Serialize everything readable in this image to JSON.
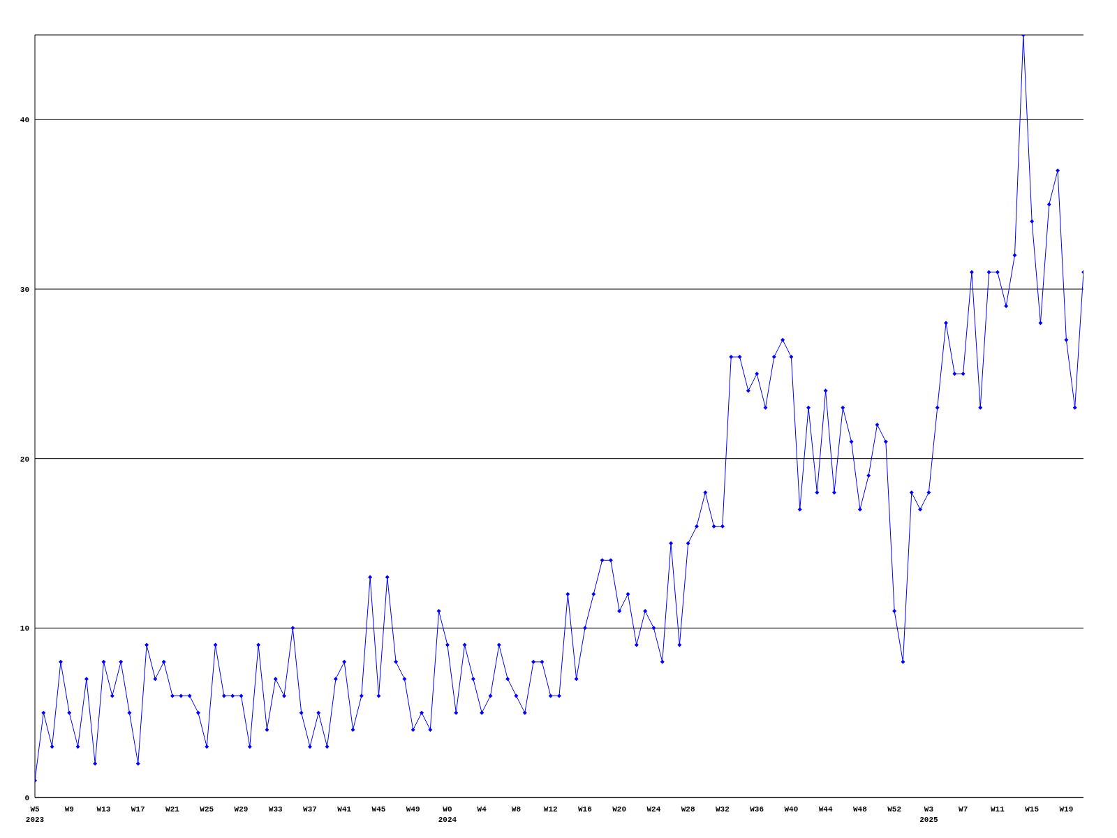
{
  "chart_data": {
    "type": "line",
    "categories": [
      "W5\n2023",
      null,
      null,
      null,
      "W9",
      null,
      null,
      null,
      "W13",
      null,
      null,
      null,
      "W17",
      null,
      null,
      null,
      "W21",
      null,
      null,
      null,
      "W25",
      null,
      null,
      null,
      "W29",
      null,
      null,
      null,
      "W33",
      null,
      null,
      null,
      "W37",
      null,
      null,
      null,
      "W41",
      null,
      null,
      null,
      "W45",
      null,
      null,
      null,
      "W49",
      null,
      null,
      null,
      "W0\n2024",
      null,
      null,
      null,
      "W4",
      null,
      null,
      null,
      "W8",
      null,
      null,
      null,
      "W12",
      null,
      null,
      null,
      "W16",
      null,
      null,
      null,
      "W20",
      null,
      null,
      null,
      "W24",
      null,
      null,
      null,
      "W28",
      null,
      null,
      null,
      "W32",
      null,
      null,
      null,
      "W36",
      null,
      null,
      null,
      "W40",
      null,
      null,
      null,
      "W44",
      null,
      null,
      null,
      "W48",
      null,
      null,
      null,
      "W52",
      null,
      null,
      null,
      "W3\n2025",
      null,
      null,
      null,
      "W7",
      null,
      null,
      null,
      "W11",
      null,
      null,
      null,
      "W15",
      null,
      null,
      null,
      "W19",
      null,
      null
    ],
    "series": [
      {
        "color": "#0000ff",
        "values": [
          1,
          5,
          3,
          8,
          5,
          3,
          7,
          2,
          8,
          6,
          8,
          5,
          2,
          9,
          7,
          8,
          6,
          6,
          6,
          5,
          3,
          9,
          6,
          6,
          6,
          3,
          9,
          4,
          7,
          6,
          10,
          5,
          3,
          5,
          3,
          7,
          8,
          4,
          6,
          13,
          6,
          13,
          8,
          7,
          4,
          5,
          4,
          11,
          9,
          5,
          9,
          7,
          5,
          6,
          9,
          7,
          6,
          5,
          8,
          8,
          6,
          6,
          12,
          7,
          10,
          12,
          14,
          14,
          11,
          12,
          9,
          11,
          10,
          8,
          15,
          9,
          15,
          16,
          18,
          16,
          16,
          26,
          26,
          24,
          25,
          23,
          26,
          27,
          26,
          17,
          23,
          18,
          24,
          18,
          23,
          21,
          17,
          19,
          22,
          21,
          11,
          8,
          18,
          17,
          18,
          23,
          28,
          25,
          25,
          31,
          23,
          31,
          31,
          29,
          32,
          45,
          34,
          28,
          35,
          37,
          27,
          23,
          31
        ]
      }
    ],
    "ylim": [
      0,
      45
    ],
    "yticks": [
      0,
      10,
      20,
      30,
      40
    ],
    "grid": "y",
    "marker": "diamond",
    "line_style": "solid",
    "legend": false
  }
}
